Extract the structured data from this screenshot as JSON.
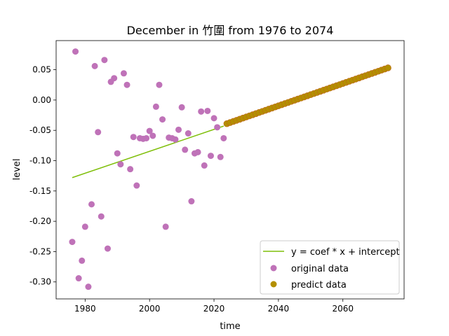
{
  "chart_data": {
    "type": "scatter",
    "title": "December in 竹圍 from 1976 to 2074",
    "xlabel": "time",
    "ylabel": "level",
    "xlim": [
      1971,
      2079
    ],
    "ylim": [
      -0.328,
      0.098
    ],
    "xticks": [
      1980,
      2000,
      2020,
      2040,
      2060
    ],
    "yticks": [
      0.05,
      0.0,
      -0.05,
      -0.1,
      -0.15,
      -0.2,
      -0.25,
      -0.3
    ],
    "ytick_labels": [
      "0.05",
      "0.00",
      "-0.05",
      "-0.10",
      "-0.15",
      "-0.20",
      "-0.25",
      "-0.30"
    ],
    "legend_position": "lower-right",
    "colors": {
      "fit_line": "#7fbf0a",
      "original": "#bf72b8",
      "predict": "#b38f00",
      "predict_edge": "#c0651a"
    },
    "fit_line": {
      "name": "y = coef * x + intercept",
      "x": [
        1976,
        2023
      ],
      "y": [
        -0.128,
        -0.043
      ]
    },
    "series": [
      {
        "name": "original data",
        "points": [
          [
            1976,
            -0.234
          ],
          [
            1977,
            0.08
          ],
          [
            1978,
            -0.294
          ],
          [
            1979,
            -0.265
          ],
          [
            1980,
            -0.209
          ],
          [
            1981,
            -0.308
          ],
          [
            1982,
            -0.172
          ],
          [
            1983,
            0.056
          ],
          [
            1984,
            -0.053
          ],
          [
            1985,
            -0.192
          ],
          [
            1986,
            0.066
          ],
          [
            1987,
            -0.245
          ],
          [
            1988,
            0.03
          ],
          [
            1989,
            0.036
          ],
          [
            1990,
            -0.088
          ],
          [
            1991,
            -0.106
          ],
          [
            1992,
            0.044
          ],
          [
            1993,
            0.025
          ],
          [
            1994,
            -0.114
          ],
          [
            1995,
            -0.061
          ],
          [
            1996,
            -0.141
          ],
          [
            1997,
            -0.063
          ],
          [
            1998,
            -0.064
          ],
          [
            1999,
            -0.063
          ],
          [
            2000,
            -0.051
          ],
          [
            2001,
            -0.059
          ],
          [
            2002,
            -0.011
          ],
          [
            2003,
            0.025
          ],
          [
            2004,
            -0.032
          ],
          [
            2005,
            -0.209
          ],
          [
            2006,
            -0.062
          ],
          [
            2007,
            -0.063
          ],
          [
            2008,
            -0.065
          ],
          [
            2009,
            -0.049
          ],
          [
            2010,
            -0.012
          ],
          [
            2011,
            -0.082
          ],
          [
            2012,
            -0.055
          ],
          [
            2013,
            -0.167
          ],
          [
            2014,
            -0.088
          ],
          [
            2015,
            -0.086
          ],
          [
            2016,
            -0.019
          ],
          [
            2017,
            -0.108
          ],
          [
            2018,
            -0.018
          ],
          [
            2019,
            -0.092
          ],
          [
            2020,
            -0.03
          ],
          [
            2021,
            -0.045
          ],
          [
            2022,
            -0.094
          ],
          [
            2023,
            -0.063
          ]
        ]
      },
      {
        "name": "predict data",
        "x_start": 2024,
        "x_end": 2074,
        "y_start": -0.039,
        "y_end": 0.053
      }
    ]
  }
}
